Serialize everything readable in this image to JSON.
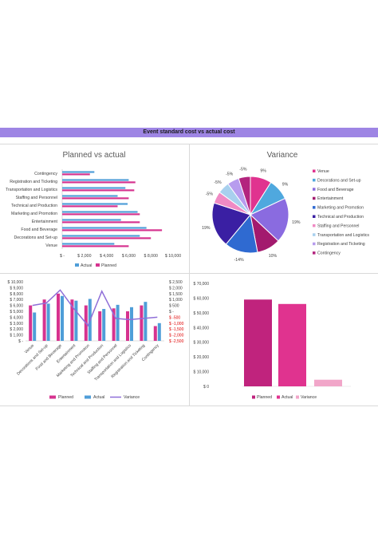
{
  "header": {
    "title": "Event standard cost vs actual cost"
  },
  "colors": {
    "planned": "#d6338f",
    "actual": "#4f9ed8",
    "variance": "#8f6fd8",
    "negative": "#e00000"
  },
  "chart_data": [
    {
      "id": "planned-vs-actual",
      "type": "bar",
      "orientation": "horizontal",
      "title": "Planned vs actual",
      "categories": [
        "Venue",
        "Decorations and Set-up",
        "Food and Beverage",
        "Entertainment",
        "Marketing and Promotion",
        "Technical and Production",
        "Staffing and Personnel",
        "Transportation and Logistics",
        "Registration and Ticketing",
        "Contingency"
      ],
      "series": [
        {
          "name": "Actual",
          "values": [
            4700,
            7000,
            7600,
            5300,
            6800,
            5900,
            5000,
            5700,
            6000,
            2900
          ]
        },
        {
          "name": "Planned",
          "values": [
            6000,
            8000,
            9000,
            7000,
            7000,
            5000,
            6000,
            6500,
            6600,
            2500
          ]
        }
      ],
      "xlim": [
        0,
        10000
      ],
      "ticks": [
        "$ -",
        "$ 2,000",
        "$ 4,000",
        "$ 6,000",
        "$ 8,000",
        "$ 10,000"
      ],
      "legend": "bottom"
    },
    {
      "id": "variance-pie",
      "type": "pie",
      "title": "Variance",
      "labels": [
        "Venue",
        "Decorations and Set-up",
        "Food and Beverage",
        "Entertainment",
        "Marketing and Promotion",
        "Technical and Production",
        "Staffing and Personnel",
        "Transportation and Logistics",
        "Registration and Ticketing",
        "Contingency"
      ],
      "values": [
        9,
        9,
        19,
        10,
        14,
        19,
        5,
        5,
        5,
        5
      ],
      "data_labels": [
        "9%",
        "9%",
        "19%",
        "10%",
        "-14%",
        "19%",
        "-5%",
        "-5%",
        "-5%",
        "-5%"
      ],
      "slice_colors": [
        "#e0338f",
        "#4fa8de",
        "#8a6be0",
        "#a31a6e",
        "#2f6ad1",
        "#3a1fa3",
        "#f08ac4",
        "#a8d0ee",
        "#b79cee",
        "#b3247e"
      ],
      "legend": "right"
    },
    {
      "id": "planned-actual-variance-combo",
      "type": "bar",
      "categories": [
        "Venue",
        "Decorations and Set-up",
        "Food and Beverage",
        "Entertainment",
        "Marketing and Promotion",
        "Technical and Production",
        "Staffing and Personnel",
        "Transportation and Logistics",
        "Registration and Ticketing",
        "Contingency"
      ],
      "series": [
        {
          "name": "Planned",
          "values": [
            6000,
            7000,
            8000,
            7000,
            6000,
            5000,
            5500,
            5000,
            6000,
            2500
          ]
        },
        {
          "name": "Actual",
          "values": [
            4800,
            6300,
            7600,
            6800,
            7100,
            5400,
            6100,
            5700,
            6600,
            3000
          ]
        },
        {
          "name": "Variance",
          "type": "line",
          "axis": "right",
          "values": [
            500,
            700,
            1800,
            200,
            -1200,
            1700,
            -600,
            -700,
            -600,
            -500
          ]
        }
      ],
      "ylim_left": [
        0,
        10000
      ],
      "left_ticks": [
        "$ -",
        "$ 1,000",
        "$ 2,000",
        "$ 3,000",
        "$ 4,000",
        "$ 5,000",
        "$ 6,000",
        "$ 7,000",
        "$ 8,000",
        "$ 9,000",
        "$ 10,000"
      ],
      "ylim_right": [
        -2500,
        2500
      ],
      "right_ticks": [
        "$ 2,500",
        "$ 2,000",
        "$ 1,500",
        "$ 1,000",
        "$ 500",
        "$ -",
        "$ -500",
        "$ -1,000",
        "$ -1,500",
        "$ -2,000",
        "$ -2,500"
      ],
      "legend": "bottom"
    },
    {
      "id": "totals",
      "type": "bar",
      "categories": [
        "Planned",
        "Actual",
        "Variance"
      ],
      "values": [
        59000,
        56000,
        4500
      ],
      "ylim": [
        0,
        70000
      ],
      "ticks": [
        "$ 0",
        "$ 10,000",
        "$ 20,000",
        "$ 30,000",
        "$ 40,000",
        "$ 50,000",
        "$ 60,000",
        "$ 70,000"
      ],
      "bar_colors": [
        "#c0237d",
        "#e0338f",
        "#f1a6c9"
      ],
      "legend": "bottom"
    }
  ]
}
